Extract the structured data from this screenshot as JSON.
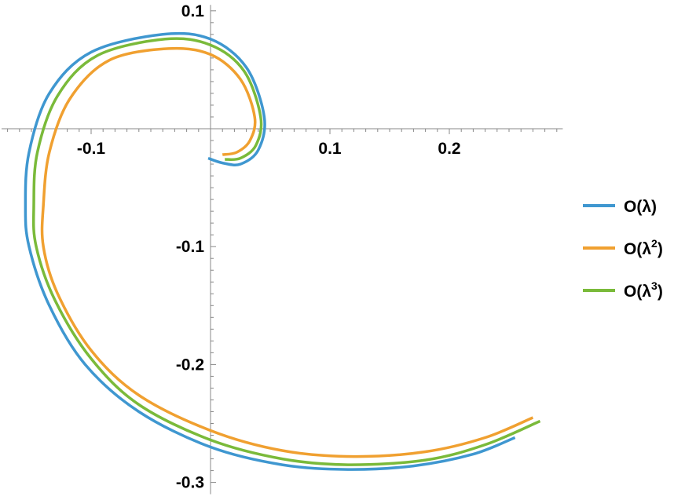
{
  "chart_data": {
    "type": "line",
    "title": "",
    "xlabel": "",
    "ylabel": "",
    "xlim": [
      -0.175,
      0.295
    ],
    "ylim": [
      -0.31,
      0.105
    ],
    "x_ticks": [
      -0.1,
      0.1,
      0.2
    ],
    "x_tick_labels": [
      "-0.1",
      "0.1",
      "0.2"
    ],
    "y_ticks": [
      0.1,
      -0.1,
      -0.2,
      -0.3
    ],
    "y_tick_labels": [
      "0.1",
      "-0.1",
      "-0.2",
      "-0.3"
    ],
    "grid": false,
    "legend_position": "right",
    "series": [
      {
        "name": "O(λ)",
        "label_base": "O(λ",
        "label_sup": "",
        "label_close": ")",
        "color": "#3f97d0",
        "points": [
          [
            0.255,
            -0.262
          ],
          [
            0.22,
            -0.276
          ],
          [
            0.17,
            -0.286
          ],
          [
            0.115,
            -0.289
          ],
          [
            0.06,
            -0.285
          ],
          [
            0.0,
            -0.27
          ],
          [
            -0.06,
            -0.24
          ],
          [
            -0.105,
            -0.2
          ],
          [
            -0.135,
            -0.15
          ],
          [
            -0.152,
            -0.1
          ],
          [
            -0.155,
            -0.065
          ],
          [
            -0.152,
            -0.02
          ],
          [
            -0.135,
            0.03
          ],
          [
            -0.1,
            0.065
          ],
          [
            -0.04,
            0.08
          ],
          [
            0.0,
            0.076
          ],
          [
            0.03,
            0.052
          ],
          [
            0.045,
            0.01
          ],
          [
            0.04,
            -0.018
          ],
          [
            0.025,
            -0.03
          ],
          [
            0.01,
            -0.029
          ],
          [
            -0.002,
            -0.025
          ]
        ]
      },
      {
        "name": "O(λ²)",
        "label_base": "O(λ",
        "label_sup": "2",
        "label_close": ")",
        "color": "#f0a030",
        "points": [
          [
            0.27,
            -0.245
          ],
          [
            0.23,
            -0.262
          ],
          [
            0.18,
            -0.274
          ],
          [
            0.12,
            -0.278
          ],
          [
            0.06,
            -0.273
          ],
          [
            0.0,
            -0.256
          ],
          [
            -0.06,
            -0.226
          ],
          [
            -0.1,
            -0.188
          ],
          [
            -0.128,
            -0.14
          ],
          [
            -0.14,
            -0.1
          ],
          [
            -0.14,
            -0.065
          ],
          [
            -0.135,
            -0.02
          ],
          [
            -0.118,
            0.025
          ],
          [
            -0.085,
            0.058
          ],
          [
            -0.035,
            0.068
          ],
          [
            0.0,
            0.063
          ],
          [
            0.025,
            0.042
          ],
          [
            0.037,
            0.01
          ],
          [
            0.033,
            -0.01
          ],
          [
            0.022,
            -0.02
          ],
          [
            0.01,
            -0.022
          ]
        ]
      },
      {
        "name": "O(λ³)",
        "label_base": "O(λ",
        "label_sup": "3",
        "label_close": ")",
        "color": "#7aba3a",
        "points": [
          [
            0.276,
            -0.248
          ],
          [
            0.23,
            -0.268
          ],
          [
            0.18,
            -0.281
          ],
          [
            0.115,
            -0.285
          ],
          [
            0.06,
            -0.28
          ],
          [
            0.0,
            -0.264
          ],
          [
            -0.06,
            -0.234
          ],
          [
            -0.1,
            -0.195
          ],
          [
            -0.13,
            -0.146
          ],
          [
            -0.146,
            -0.1
          ],
          [
            -0.148,
            -0.065
          ],
          [
            -0.145,
            -0.02
          ],
          [
            -0.128,
            0.028
          ],
          [
            -0.095,
            0.062
          ],
          [
            -0.038,
            0.076
          ],
          [
            0.0,
            0.071
          ],
          [
            0.028,
            0.049
          ],
          [
            0.042,
            0.01
          ],
          [
            0.038,
            -0.014
          ],
          [
            0.025,
            -0.025
          ],
          [
            0.012,
            -0.026
          ]
        ]
      }
    ]
  }
}
